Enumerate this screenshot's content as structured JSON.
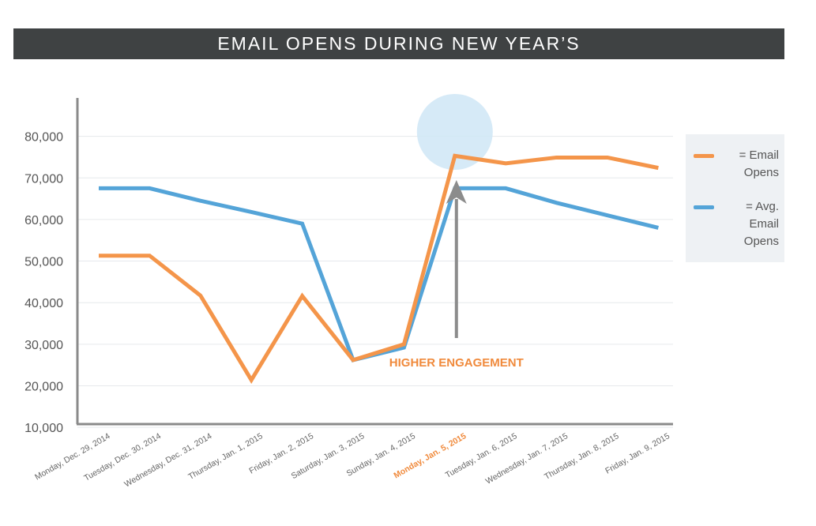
{
  "chart_data": {
    "type": "line",
    "title": "EMAIL OPENS DURING NEW YEAR’S",
    "categories": [
      "Monday, Dec. 29, 2014",
      "Tuesday, Dec. 30, 2014",
      "Wednesday, Dec. 31, 2014",
      "Thursday, Jan. 1, 2015",
      "Friday, Jan. 2, 2015",
      "Saturday, Jan. 3, 2015",
      "Sunday, Jan. 4, 2015",
      "Monday, Jan. 5, 2015",
      "Tuesday, Jan. 6, 2015",
      "Wednesday, Jan. 7, 2015",
      "Thursday, Jan. 8, 2015",
      "Friday, Jan. 9, 2015"
    ],
    "highlight_category": "Monday, Jan. 5, 2015",
    "series": [
      {
        "name": "= Email Opens",
        "color": "#f4954a",
        "values": [
          51300,
          51300,
          41700,
          21400,
          41600,
          26200,
          30000,
          75300,
          73500,
          74900,
          74900,
          72400
        ]
      },
      {
        "name": "= Avg. Email Opens",
        "color": "#54a4d8",
        "values": [
          67500,
          67500,
          64500,
          61800,
          59000,
          26200,
          29200,
          67500,
          67500,
          64000,
          61000,
          58000
        ]
      }
    ],
    "y_ticks": [
      "10,000",
      "20,000",
      "30,000",
      "40,000",
      "50,000",
      "60,000",
      "70,000",
      "80,000"
    ],
    "ylim": [
      0,
      80000
    ],
    "grid": true,
    "legend_position": "right",
    "annotation": {
      "text": "HIGHER ENGAGEMENT",
      "color": "#f08a3c"
    },
    "highlight_color": "#f08a3c"
  },
  "legend": {
    "email_opens": [
      "= Email",
      "Opens"
    ],
    "avg_email_opens": [
      "= Avg.",
      "Email",
      "Opens"
    ]
  }
}
